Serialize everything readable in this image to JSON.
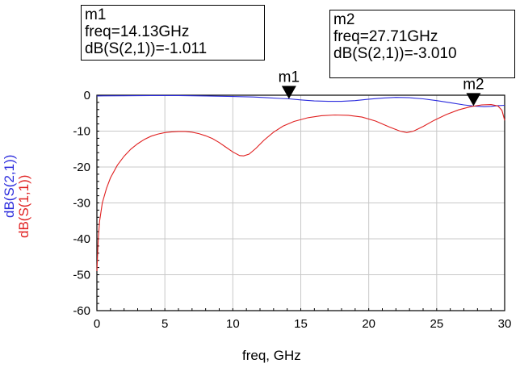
{
  "chart_data": {
    "type": "line",
    "xlabel": "freq, GHz",
    "ylabels": [
      "dB(S(2,1))",
      "dB(S(1,1))"
    ],
    "xlim": [
      0,
      30
    ],
    "ylim": [
      -60,
      0
    ],
    "xticks": [
      0,
      5,
      10,
      15,
      20,
      25,
      30
    ],
    "yticks": [
      0,
      -10,
      -20,
      -30,
      -40,
      -50,
      -60
    ],
    "grid": true,
    "series": [
      {
        "name": "dB(S(2,1))",
        "color": "#2b2bdd",
        "points": [
          [
            0,
            -0.2
          ],
          [
            2,
            -0.15
          ],
          [
            4,
            -0.1
          ],
          [
            6,
            -0.1
          ],
          [
            8,
            -0.2
          ],
          [
            10,
            -0.35
          ],
          [
            11.5,
            -0.5
          ],
          [
            12.5,
            -0.7
          ],
          [
            13.5,
            -0.9
          ],
          [
            14.13,
            -1.011
          ],
          [
            15,
            -1.3
          ],
          [
            16,
            -1.6
          ],
          [
            17,
            -1.7
          ],
          [
            18,
            -1.7
          ],
          [
            19,
            -1.5
          ],
          [
            20,
            -1.1
          ],
          [
            21,
            -0.8
          ],
          [
            22,
            -0.6
          ],
          [
            23,
            -0.7
          ],
          [
            24,
            -1.0
          ],
          [
            25,
            -1.5
          ],
          [
            26,
            -2.1
          ],
          [
            27,
            -2.7
          ],
          [
            27.71,
            -3.01
          ],
          [
            28.5,
            -3.2
          ],
          [
            29,
            -3.1
          ],
          [
            29.5,
            -2.9
          ],
          [
            30,
            -2.8
          ]
        ]
      },
      {
        "name": "dB(S(1,1))",
        "color": "#e02020",
        "points": [
          [
            0,
            -49
          ],
          [
            0.1,
            -40
          ],
          [
            0.2,
            -35
          ],
          [
            0.4,
            -30
          ],
          [
            0.7,
            -26
          ],
          [
            1,
            -23
          ],
          [
            1.5,
            -19.5
          ],
          [
            2,
            -17
          ],
          [
            2.5,
            -15
          ],
          [
            3,
            -13.5
          ],
          [
            3.5,
            -12.3
          ],
          [
            4,
            -11.4
          ],
          [
            4.5,
            -10.8
          ],
          [
            5,
            -10.4
          ],
          [
            5.5,
            -10.2
          ],
          [
            6,
            -10.1
          ],
          [
            6.5,
            -10.1
          ],
          [
            7,
            -10.3
          ],
          [
            7.5,
            -10.7
          ],
          [
            8,
            -11.3
          ],
          [
            8.5,
            -12.1
          ],
          [
            9,
            -13.2
          ],
          [
            9.5,
            -14.5
          ],
          [
            10,
            -15.8
          ],
          [
            10.5,
            -16.8
          ],
          [
            10.8,
            -16.9
          ],
          [
            11.2,
            -16.4
          ],
          [
            11.7,
            -14.8
          ],
          [
            12.3,
            -12.5
          ],
          [
            13,
            -10.3
          ],
          [
            13.7,
            -8.6
          ],
          [
            14.5,
            -7.3
          ],
          [
            15.5,
            -6.3
          ],
          [
            16.5,
            -5.7
          ],
          [
            17.5,
            -5.5
          ],
          [
            18.5,
            -5.6
          ],
          [
            19.5,
            -6.1
          ],
          [
            20.5,
            -7.2
          ],
          [
            21.5,
            -8.8
          ],
          [
            22.3,
            -10
          ],
          [
            22.8,
            -10.4
          ],
          [
            23.3,
            -10.0
          ],
          [
            24,
            -8.7
          ],
          [
            24.8,
            -7
          ],
          [
            25.7,
            -5.4
          ],
          [
            26.6,
            -4.1
          ],
          [
            27.5,
            -3.2
          ],
          [
            28.3,
            -2.7
          ],
          [
            29,
            -2.6
          ],
          [
            29.5,
            -3
          ],
          [
            29.8,
            -4.2
          ],
          [
            30,
            -7
          ]
        ]
      }
    ],
    "markers": [
      {
        "name": "m1",
        "x": 14.13,
        "y": -1.011,
        "series": "dB(S(2,1))"
      },
      {
        "name": "m2",
        "x": 27.71,
        "y": -3.01,
        "series": "dB(S(2,1))"
      }
    ]
  },
  "marker_boxes": {
    "m1": {
      "name": "m1",
      "freq": "freq=14.13GHz",
      "value": "dB(S(2,1))=-1.011"
    },
    "m2": {
      "name": "m2",
      "freq": "freq=27.71GHz",
      "value": "dB(S(2,1))=-3.010"
    }
  }
}
